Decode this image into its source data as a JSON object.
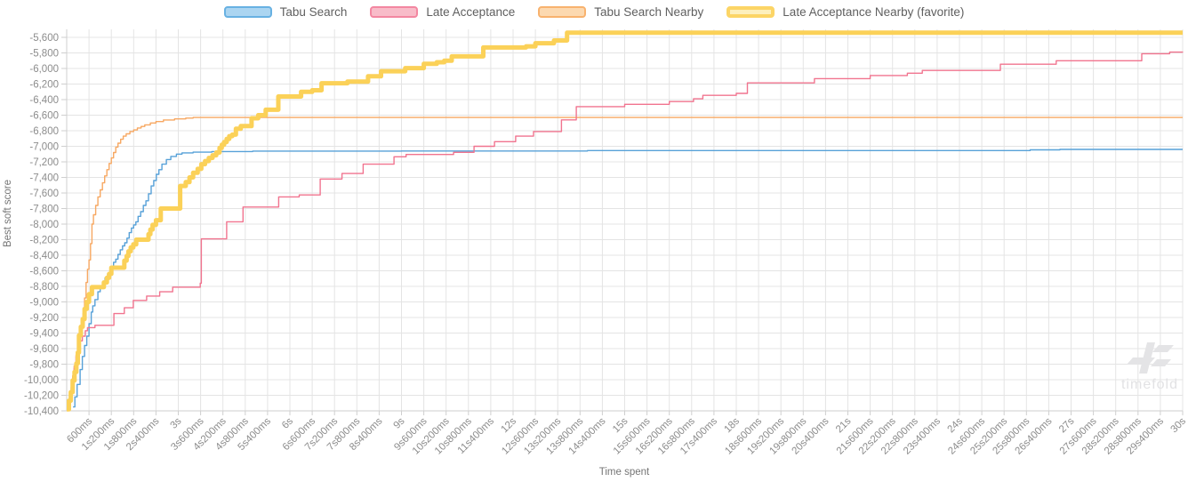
{
  "watermark": {
    "text": "timefold"
  },
  "legend": {
    "items": [
      {
        "label": "Tabu Search",
        "fill": "#abd5f1",
        "border": "#68b1e2",
        "thick": false
      },
      {
        "label": "Late Acceptance",
        "fill": "#f8bcc9",
        "border": "#f387a1",
        "thick": false
      },
      {
        "label": "Tabu Search Nearby",
        "fill": "#fcd9b0",
        "border": "#f8b26e",
        "thick": false
      },
      {
        "label": "Late Acceptance Nearby (favorite)",
        "fill": "#fdf0bd",
        "border": "#fcd566",
        "thick": true
      }
    ]
  },
  "chart_data": {
    "type": "line",
    "step": true,
    "title": "",
    "xlabel": "Time spent",
    "ylabel": "Best soft score",
    "xlim": [
      0,
      30000
    ],
    "ylim": [
      -10400,
      -5600
    ],
    "y_tick_step": 200,
    "x_tick_interval_ms": 600,
    "grid": true,
    "legend_position": "top",
    "x_tick_labels": [
      "600ms",
      "1s200ms",
      "1s800ms",
      "2s400ms",
      "3s",
      "3s600ms",
      "4s200ms",
      "4s800ms",
      "5s400ms",
      "6s",
      "6s600ms",
      "7s200ms",
      "7s800ms",
      "8s400ms",
      "9s",
      "9s600ms",
      "10s200ms",
      "10s800ms",
      "11s400ms",
      "12s",
      "12s600ms",
      "13s200ms",
      "13s800ms",
      "14s400ms",
      "15s",
      "15s600ms",
      "16s200ms",
      "16s800ms",
      "17s400ms",
      "18s",
      "18s600ms",
      "19s200ms",
      "19s800ms",
      "20s400ms",
      "21s",
      "21s600ms",
      "22s200ms",
      "22s800ms",
      "23s400ms",
      "24s",
      "24s600ms",
      "25s200ms",
      "25s800ms",
      "26s400ms",
      "27s",
      "27s600ms",
      "28s200ms",
      "28s800ms",
      "29s400ms",
      "30s"
    ],
    "y_tick_labels": [
      "-5,600",
      "-5,800",
      "-6,000",
      "-6,200",
      "-6,400",
      "-6,600",
      "-6,800",
      "-7,000",
      "-7,200",
      "-7,400",
      "-7,600",
      "-7,800",
      "-8,000",
      "-8,200",
      "-8,400",
      "-8,600",
      "-8,800",
      "-9,000",
      "-9,200",
      "-9,400",
      "-9,600",
      "-9,800",
      "-10,000",
      "-10,200",
      "-10,400"
    ],
    "series": [
      {
        "name": "Tabu Search",
        "color": "#57a1d8",
        "width": 1.4,
        "points": [
          [
            170,
            -10350
          ],
          [
            220,
            -10220
          ],
          [
            280,
            -10060
          ],
          [
            360,
            -9870
          ],
          [
            420,
            -9700
          ],
          [
            480,
            -9560
          ],
          [
            540,
            -9440
          ],
          [
            600,
            -9280
          ],
          [
            660,
            -9130
          ],
          [
            700,
            -9050
          ],
          [
            760,
            -8970
          ],
          [
            840,
            -8870
          ],
          [
            900,
            -8810
          ],
          [
            960,
            -8750
          ],
          [
            1030,
            -8690
          ],
          [
            1100,
            -8640
          ],
          [
            1200,
            -8560
          ],
          [
            1260,
            -8490
          ],
          [
            1320,
            -8450
          ],
          [
            1380,
            -8390
          ],
          [
            1440,
            -8330
          ],
          [
            1500,
            -8280
          ],
          [
            1560,
            -8240
          ],
          [
            1620,
            -8180
          ],
          [
            1680,
            -8110
          ],
          [
            1740,
            -8050
          ],
          [
            1800,
            -8010
          ],
          [
            1860,
            -7970
          ],
          [
            1920,
            -7900
          ],
          [
            1990,
            -7840
          ],
          [
            2060,
            -7760
          ],
          [
            2130,
            -7700
          ],
          [
            2200,
            -7610
          ],
          [
            2270,
            -7510
          ],
          [
            2340,
            -7440
          ],
          [
            2410,
            -7360
          ],
          [
            2480,
            -7300
          ],
          [
            2560,
            -7230
          ],
          [
            2680,
            -7170
          ],
          [
            2800,
            -7130
          ],
          [
            2950,
            -7100
          ],
          [
            3100,
            -7085
          ],
          [
            3400,
            -7075
          ],
          [
            3900,
            -7068
          ],
          [
            5000,
            -7062
          ],
          [
            9000,
            -7060
          ],
          [
            14000,
            -7055
          ],
          [
            25900,
            -7046
          ],
          [
            26700,
            -7040
          ],
          [
            30000,
            -7040
          ]
        ]
      },
      {
        "name": "Tabu Search Nearby",
        "color": "#f7a862",
        "width": 1.4,
        "points": [
          [
            0,
            -10380
          ],
          [
            80,
            -10250
          ],
          [
            120,
            -10100
          ],
          [
            160,
            -9950
          ],
          [
            200,
            -9820
          ],
          [
            250,
            -9680
          ],
          [
            300,
            -9550
          ],
          [
            350,
            -9430
          ],
          [
            400,
            -9300
          ],
          [
            440,
            -9150
          ],
          [
            480,
            -8950
          ],
          [
            520,
            -8750
          ],
          [
            560,
            -8580
          ],
          [
            600,
            -8460
          ],
          [
            640,
            -8250
          ],
          [
            680,
            -8000
          ],
          [
            720,
            -7880
          ],
          [
            780,
            -7760
          ],
          [
            840,
            -7650
          ],
          [
            900,
            -7560
          ],
          [
            960,
            -7470
          ],
          [
            1020,
            -7380
          ],
          [
            1080,
            -7300
          ],
          [
            1140,
            -7220
          ],
          [
            1200,
            -7150
          ],
          [
            1260,
            -7080
          ],
          [
            1320,
            -7010
          ],
          [
            1380,
            -6960
          ],
          [
            1450,
            -6910
          ],
          [
            1520,
            -6870
          ],
          [
            1600,
            -6840
          ],
          [
            1700,
            -6810
          ],
          [
            1800,
            -6790
          ],
          [
            1900,
            -6765
          ],
          [
            2000,
            -6745
          ],
          [
            2100,
            -6725
          ],
          [
            2250,
            -6700
          ],
          [
            2400,
            -6682
          ],
          [
            2600,
            -6662
          ],
          [
            2900,
            -6648
          ],
          [
            3200,
            -6638
          ],
          [
            3400,
            -6630
          ],
          [
            30000,
            -6630
          ]
        ]
      },
      {
        "name": "Late Acceptance",
        "color": "#f1748f",
        "width": 1.4,
        "points": [
          [
            0,
            -10350
          ],
          [
            80,
            -10150
          ],
          [
            140,
            -10000
          ],
          [
            200,
            -9850
          ],
          [
            250,
            -9700
          ],
          [
            300,
            -9590
          ],
          [
            360,
            -9500
          ],
          [
            420,
            -9440
          ],
          [
            500,
            -9370
          ],
          [
            560,
            -9330
          ],
          [
            760,
            -9300
          ],
          [
            1270,
            -9150
          ],
          [
            1550,
            -9075
          ],
          [
            1790,
            -8980
          ],
          [
            2150,
            -8925
          ],
          [
            2500,
            -8870
          ],
          [
            2850,
            -8810
          ],
          [
            3590,
            -8760
          ],
          [
            3620,
            -8190
          ],
          [
            4300,
            -7970
          ],
          [
            4740,
            -7780
          ],
          [
            5700,
            -7650
          ],
          [
            6250,
            -7625
          ],
          [
            6815,
            -7420
          ],
          [
            7400,
            -7350
          ],
          [
            7970,
            -7230
          ],
          [
            8800,
            -7135
          ],
          [
            9125,
            -7105
          ],
          [
            10400,
            -7078
          ],
          [
            10950,
            -7000
          ],
          [
            11500,
            -6940
          ],
          [
            12070,
            -6870
          ],
          [
            12550,
            -6810
          ],
          [
            13300,
            -6660
          ],
          [
            13700,
            -6490
          ],
          [
            15000,
            -6460
          ],
          [
            16200,
            -6425
          ],
          [
            16850,
            -6390
          ],
          [
            17100,
            -6345
          ],
          [
            18000,
            -6320
          ],
          [
            18300,
            -6185
          ],
          [
            20100,
            -6130
          ],
          [
            21600,
            -6090
          ],
          [
            22600,
            -6060
          ],
          [
            23000,
            -6025
          ],
          [
            25100,
            -5945
          ],
          [
            26600,
            -5900
          ],
          [
            28900,
            -5810
          ],
          [
            29650,
            -5790
          ],
          [
            30000,
            -5785
          ]
        ]
      },
      {
        "name": "Late Acceptance Nearby (favorite)",
        "color": "#fbd158",
        "width": 5,
        "points": [
          [
            0,
            -10380
          ],
          [
            60,
            -10270
          ],
          [
            110,
            -10160
          ],
          [
            160,
            -10010
          ],
          [
            210,
            -9900
          ],
          [
            260,
            -9790
          ],
          [
            300,
            -9650
          ],
          [
            330,
            -9430
          ],
          [
            380,
            -9320
          ],
          [
            430,
            -9220
          ],
          [
            480,
            -9090
          ],
          [
            540,
            -9000
          ],
          [
            600,
            -8900
          ],
          [
            680,
            -8810
          ],
          [
            1000,
            -8750
          ],
          [
            1080,
            -8690
          ],
          [
            1140,
            -8640
          ],
          [
            1200,
            -8560
          ],
          [
            1550,
            -8470
          ],
          [
            1610,
            -8410
          ],
          [
            1660,
            -8350
          ],
          [
            1720,
            -8300
          ],
          [
            1790,
            -8260
          ],
          [
            1870,
            -8200
          ],
          [
            2200,
            -8130
          ],
          [
            2250,
            -8070
          ],
          [
            2310,
            -8010
          ],
          [
            2400,
            -7950
          ],
          [
            2530,
            -7800
          ],
          [
            3050,
            -7510
          ],
          [
            3200,
            -7460
          ],
          [
            3300,
            -7400
          ],
          [
            3400,
            -7340
          ],
          [
            3520,
            -7290
          ],
          [
            3620,
            -7230
          ],
          [
            3720,
            -7190
          ],
          [
            3820,
            -7150
          ],
          [
            3920,
            -7115
          ],
          [
            4020,
            -7080
          ],
          [
            4110,
            -7020
          ],
          [
            4170,
            -6980
          ],
          [
            4230,
            -6945
          ],
          [
            4300,
            -6905
          ],
          [
            4370,
            -6870
          ],
          [
            4450,
            -6850
          ],
          [
            4550,
            -6775
          ],
          [
            4680,
            -6740
          ],
          [
            4970,
            -6640
          ],
          [
            5150,
            -6600
          ],
          [
            5350,
            -6530
          ],
          [
            5690,
            -6360
          ],
          [
            6300,
            -6300
          ],
          [
            6600,
            -6280
          ],
          [
            6850,
            -6190
          ],
          [
            7550,
            -6168
          ],
          [
            8100,
            -6100
          ],
          [
            8450,
            -6035
          ],
          [
            9100,
            -5995
          ],
          [
            9600,
            -5940
          ],
          [
            9950,
            -5920
          ],
          [
            10150,
            -5900
          ],
          [
            10350,
            -5845
          ],
          [
            11200,
            -5730
          ],
          [
            12350,
            -5715
          ],
          [
            12600,
            -5675
          ],
          [
            13100,
            -5640
          ],
          [
            13450,
            -5540
          ],
          [
            30000,
            -5540
          ]
        ]
      }
    ],
    "draw_order": [
      0,
      1,
      2,
      3
    ],
    "colors": {
      "grid": "#e4e4e4",
      "axis": "#cfcfcf",
      "tick": "#cfcfcf"
    }
  }
}
